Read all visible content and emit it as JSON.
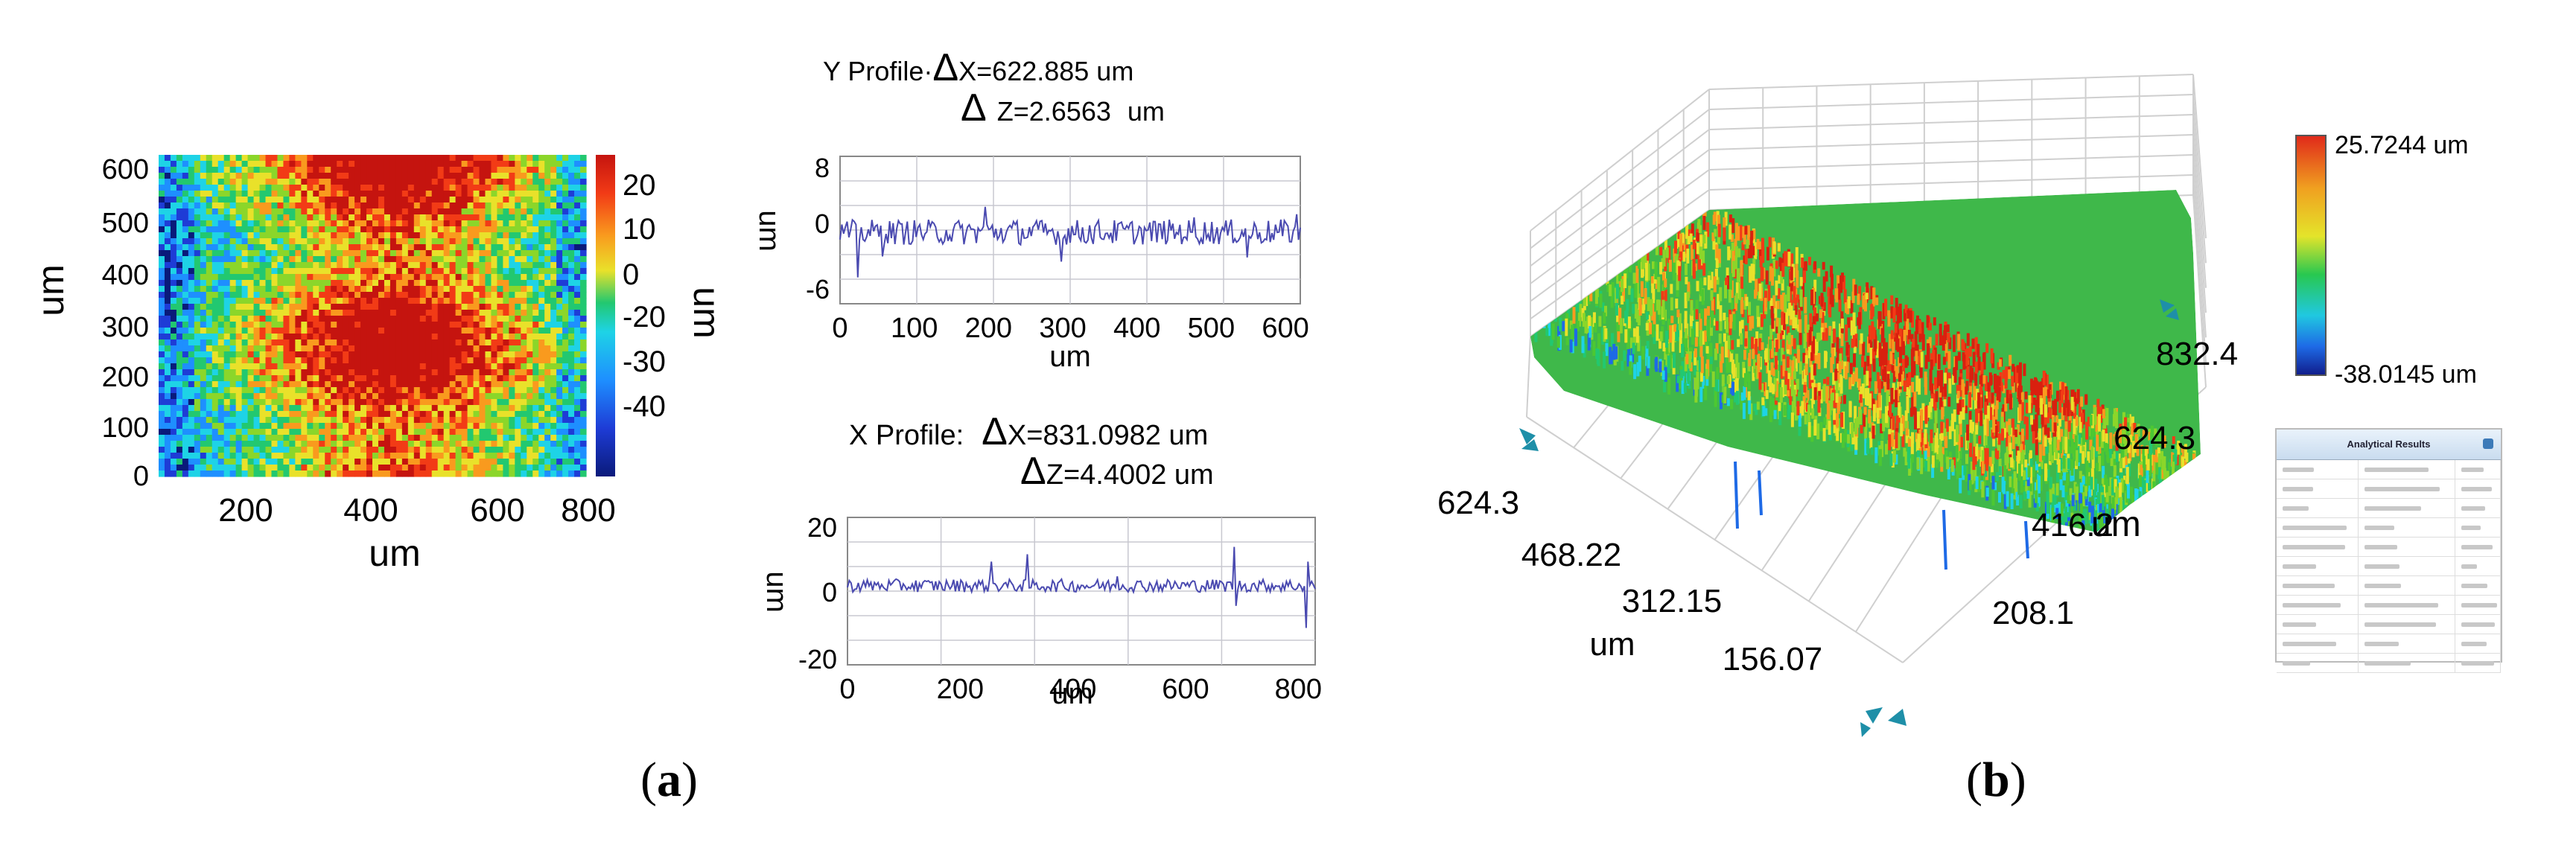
{
  "captions": [
    {
      "letter": "a",
      "open": "(",
      "close": ")"
    },
    {
      "letter": "b",
      "open": "(",
      "close": ")"
    }
  ],
  "colors": {
    "scale": [
      "#0a1a7a",
      "#1e3cd6",
      "#1e8fff",
      "#1ed3e6",
      "#22c870",
      "#8bd62a",
      "#e9e12a",
      "#f99a1e",
      "#f23b16",
      "#c5140f"
    ],
    "profile_line": "#4a4ab0",
    "grid": "#c8c8d0"
  },
  "chart_data": [
    {
      "id": "heatmap",
      "type": "heatmap",
      "xlabel": "um",
      "ylabel": "um",
      "xlim": [
        80,
        800
      ],
      "ylim": [
        0,
        620
      ],
      "x_ticks": [
        "200",
        "400",
        "600",
        "800"
      ],
      "y_ticks": [
        "0",
        "100",
        "200",
        "300",
        "400",
        "500",
        "600"
      ],
      "colorbar": {
        "label": "um",
        "ticks": [
          "20",
          "10",
          "0",
          "-20",
          "-30",
          "-40"
        ],
        "range": [
          -40,
          25
        ]
      }
    },
    {
      "id": "y_profile",
      "type": "line",
      "annotation": {
        "line1": "Y Profile·",
        "delta": "Δ",
        "line1_value": "X=622.885 um",
        "line2_value": "Z=2.6563",
        "line2_unit": "um"
      },
      "xlabel": "um",
      "ylabel": "um",
      "xlim": [
        0,
        620
      ],
      "ylim": [
        -6,
        8
      ],
      "x_ticks": [
        "0",
        "100",
        "200",
        "300",
        "400",
        "500",
        "600"
      ],
      "y_ticks": [
        "8",
        "0",
        "-6"
      ]
    },
    {
      "id": "x_profile",
      "type": "line",
      "annotation": {
        "line1": "X Profile:",
        "delta": "Δ",
        "line1_value": "X=831.0982 um",
        "line2_value": "Z=4.4002 um"
      },
      "xlabel": "um",
      "ylabel": "um",
      "xlim": [
        0,
        830
      ],
      "ylim": [
        -20,
        20
      ],
      "x_ticks": [
        "0",
        "200",
        "400",
        "600",
        "800"
      ],
      "y_ticks": [
        "20",
        "0",
        "-20"
      ]
    },
    {
      "id": "surface3d",
      "type": "surface",
      "left_axis_ticks": [
        "624.3",
        "468.22",
        "312.15",
        "156.07"
      ],
      "left_axis_label": "um",
      "right_axis_ticks": [
        "832.4",
        "624.3",
        "416.2",
        "208.1"
      ],
      "right_axis_label": "um",
      "colorbar": {
        "max_label": "25.7244 um",
        "min_label": "-38.0145 um"
      }
    }
  ],
  "results_table": {
    "title": "Analytical Results"
  }
}
